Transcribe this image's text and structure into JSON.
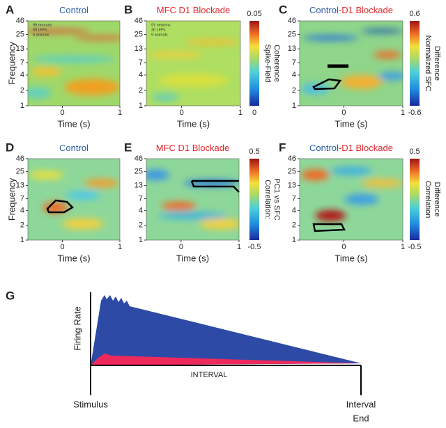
{
  "panels": [
    {
      "letter": "A",
      "title": [
        {
          "text": "Control",
          "color": "#2a5ca8"
        }
      ],
      "notes": [
        "99 neurons",
        "30 LFPs",
        "9 animals"
      ],
      "ylabel": "Frequency",
      "xlabel": "Time (s)",
      "yticks": [
        46,
        25,
        13,
        7,
        4,
        2,
        1
      ],
      "xticks": [
        0,
        1
      ],
      "xlim": [
        -0.6,
        1
      ]
    },
    {
      "letter": "B",
      "title": [
        {
          "text": "MFC D1 Blockade",
          "color": "#e3262d"
        }
      ],
      "notes": [
        "91 neurons",
        "30 LFPs",
        "9 animals"
      ],
      "xlabel": "Time (s)",
      "yticks": [
        46,
        25,
        13,
        7,
        4,
        2,
        1
      ],
      "xticks": [
        0,
        1
      ],
      "xlim": [
        -0.6,
        1
      ],
      "colorbar": {
        "ticks": [
          "0.05",
          "0"
        ],
        "label": [
          "Spike-Field",
          "Coherence"
        ]
      }
    },
    {
      "letter": "C",
      "title": [
        {
          "text": "Control",
          "color": "#2a5ca8"
        },
        {
          "text": "-D1 Blockade",
          "color": "#e3262d"
        }
      ],
      "xlabel": "Time (s)",
      "yticks": [
        46,
        25,
        13,
        7,
        4,
        2,
        1
      ],
      "xticks": [
        0,
        1
      ],
      "xlim": [
        -0.75,
        1
      ],
      "colorbar": {
        "ticks": [
          "0.6",
          "-0.6"
        ],
        "label": [
          "Normalized SFC",
          "Difference"
        ]
      }
    },
    {
      "letter": "D",
      "title": [
        {
          "text": "Control",
          "color": "#2a5ca8"
        }
      ],
      "ylabel": "Frequency",
      "xlabel": "Time (s)",
      "yticks": [
        46,
        25,
        13,
        7,
        4,
        2,
        1
      ],
      "xticks": [
        0,
        1
      ],
      "xlim": [
        -0.6,
        1
      ]
    },
    {
      "letter": "E",
      "title": [
        {
          "text": "MFC D1 Blockade",
          "color": "#e3262d"
        }
      ],
      "xlabel": "Time (s)",
      "yticks": [
        46,
        25,
        13,
        7,
        4,
        2,
        1
      ],
      "xticks": [
        0,
        1
      ],
      "xlim": [
        -0.6,
        1
      ],
      "colorbar": {
        "ticks": [
          "0.5",
          "-0.5"
        ],
        "label": [
          "Correlation:",
          "PC1 vs SFC"
        ]
      }
    },
    {
      "letter": "F",
      "title": [
        {
          "text": "Control",
          "color": "#2a5ca8"
        },
        {
          "text": "-D1 Blockade",
          "color": "#e3262d"
        }
      ],
      "xlabel": "Time (s)",
      "yticks": [
        46,
        25,
        13,
        7,
        4,
        2,
        1
      ],
      "xticks": [
        0,
        1
      ],
      "xlim": [
        -0.75,
        1
      ],
      "colorbar": {
        "ticks": [
          "0.5",
          "-0.5"
        ],
        "label": [
          "Correlation",
          "Difference"
        ]
      }
    }
  ],
  "g": {
    "letter": "G",
    "ylabel": "Firing Rate",
    "interval": "INTERVAL",
    "start": "Stimulus",
    "end": [
      "Interval",
      "End"
    ]
  }
}
